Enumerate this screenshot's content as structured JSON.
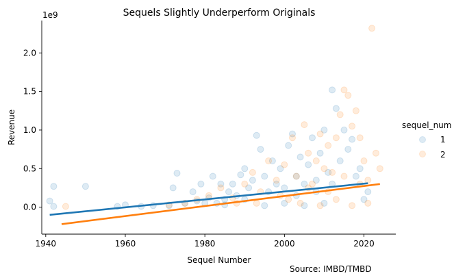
{
  "chart_data": {
    "type": "scatter",
    "title": "Sequels Slightly Underperform Originals",
    "xlabel": "Sequel Number",
    "ylabel": "Revenue",
    "y_offset_text": "1e9",
    "xlim": [
      1939,
      2028
    ],
    "ylim": [
      -0.35,
      2.42
    ],
    "x_ticks": [
      1940,
      1960,
      1980,
      2000,
      2020
    ],
    "x_tick_labels": [
      "1940",
      "1960",
      "1980",
      "2000",
      "2020"
    ],
    "y_ticks": [
      0.0,
      0.5,
      1.0,
      1.5,
      2.0
    ],
    "y_tick_labels": [
      "0.0",
      "0.5",
      "1.0",
      "1.5",
      "2.0"
    ],
    "y_unit_note": "y values in units of 1e9",
    "grid": false,
    "legend": {
      "title": "sequel_num",
      "placement": "right",
      "entries": [
        "1",
        "2"
      ]
    },
    "source_note": "Source: IMBD/TMBD",
    "colors": {
      "series_1": "#1f77b4",
      "series_2": "#ff7f0e"
    },
    "series": [
      {
        "name": "1",
        "color": "#1f77b4",
        "points": [
          [
            1941,
            0.08
          ],
          [
            1942,
            0.27
          ],
          [
            1942,
            0.01
          ],
          [
            1950,
            0.27
          ],
          [
            1958,
            0.01
          ],
          [
            1960,
            0.03
          ],
          [
            1964,
            0.01
          ],
          [
            1967,
            0.02
          ],
          [
            1971,
            0.02
          ],
          [
            1972,
            0.25
          ],
          [
            1973,
            0.44
          ],
          [
            1975,
            0.05
          ],
          [
            1977,
            0.2
          ],
          [
            1978,
            0.08
          ],
          [
            1979,
            0.3
          ],
          [
            1980,
            0.05
          ],
          [
            1981,
            0.12
          ],
          [
            1982,
            0.4
          ],
          [
            1983,
            0.05
          ],
          [
            1984,
            0.3
          ],
          [
            1985,
            0.1
          ],
          [
            1986,
            0.2
          ],
          [
            1987,
            0.3
          ],
          [
            1988,
            0.15
          ],
          [
            1989,
            0.42
          ],
          [
            1990,
            0.5
          ],
          [
            1991,
            0.25
          ],
          [
            1992,
            0.35
          ],
          [
            1993,
            0.93
          ],
          [
            1994,
            0.75
          ],
          [
            1995,
            0.4
          ],
          [
            1996,
            0.2
          ],
          [
            1997,
            0.6
          ],
          [
            1998,
            0.3
          ],
          [
            1999,
            0.5
          ],
          [
            2000,
            0.25
          ],
          [
            2001,
            0.8
          ],
          [
            2002,
            0.95
          ],
          [
            2003,
            0.4
          ],
          [
            2004,
            0.65
          ],
          [
            2005,
            0.3
          ],
          [
            2006,
            0.55
          ],
          [
            2007,
            0.9
          ],
          [
            2008,
            0.35
          ],
          [
            2009,
            0.7
          ],
          [
            2010,
            1.0
          ],
          [
            2011,
            0.45
          ],
          [
            2012,
            1.52
          ],
          [
            2013,
            1.28
          ],
          [
            2014,
            0.6
          ],
          [
            2015,
            1.0
          ],
          [
            2016,
            0.75
          ],
          [
            2017,
            0.88
          ],
          [
            2018,
            0.4
          ],
          [
            2019,
            0.5
          ],
          [
            2020,
            0.1
          ],
          [
            2021,
            0.2
          ],
          [
            1995,
            0.02
          ],
          [
            2000,
            0.05
          ],
          [
            2005,
            0.02
          ],
          [
            2010,
            0.05
          ],
          [
            1990,
            0.1
          ],
          [
            1985,
            0.03
          ],
          [
            2003,
            0.15
          ],
          [
            2008,
            0.2
          ],
          [
            2012,
            0.3
          ]
        ],
        "fit_line": [
          [
            1941,
            -0.1
          ],
          [
            2021,
            0.31
          ]
        ]
      },
      {
        "name": "2",
        "color": "#ff7f0e",
        "points": [
          [
            1945,
            0.01
          ],
          [
            1971,
            0.03
          ],
          [
            1975,
            0.05
          ],
          [
            1978,
            0.1
          ],
          [
            1981,
            0.15
          ],
          [
            1984,
            0.25
          ],
          [
            1987,
            0.12
          ],
          [
            1990,
            0.3
          ],
          [
            1992,
            0.45
          ],
          [
            1994,
            0.2
          ],
          [
            1996,
            0.6
          ],
          [
            1998,
            0.35
          ],
          [
            2000,
            0.55
          ],
          [
            2002,
            0.9
          ],
          [
            2003,
            0.4
          ],
          [
            2005,
            1.07
          ],
          [
            2006,
            0.7
          ],
          [
            2007,
            0.3
          ],
          [
            2008,
            0.6
          ],
          [
            2009,
            0.95
          ],
          [
            2010,
            0.5
          ],
          [
            2011,
            0.8
          ],
          [
            2012,
            0.45
          ],
          [
            2013,
            0.9
          ],
          [
            2014,
            1.2
          ],
          [
            2015,
            1.52
          ],
          [
            2016,
            1.45
          ],
          [
            2017,
            1.05
          ],
          [
            2018,
            1.25
          ],
          [
            2019,
            0.9
          ],
          [
            2020,
            0.6
          ],
          [
            2021,
            0.35
          ],
          [
            2022,
            2.32
          ],
          [
            2023,
            0.7
          ],
          [
            2024,
            0.5
          ],
          [
            1999,
            0.15
          ],
          [
            2004,
            0.05
          ],
          [
            2009,
            0.02
          ],
          [
            2013,
            0.1
          ],
          [
            2017,
            0.02
          ],
          [
            1993,
            0.05
          ],
          [
            2011,
            0.2
          ],
          [
            2019,
            0.3
          ],
          [
            2001,
            0.1
          ],
          [
            2006,
            0.25
          ],
          [
            1988,
            0.05
          ],
          [
            2015,
            0.4
          ],
          [
            2021,
            0.05
          ]
        ],
        "fit_line": [
          [
            1944,
            -0.22
          ],
          [
            2024,
            0.3
          ]
        ]
      }
    ]
  }
}
